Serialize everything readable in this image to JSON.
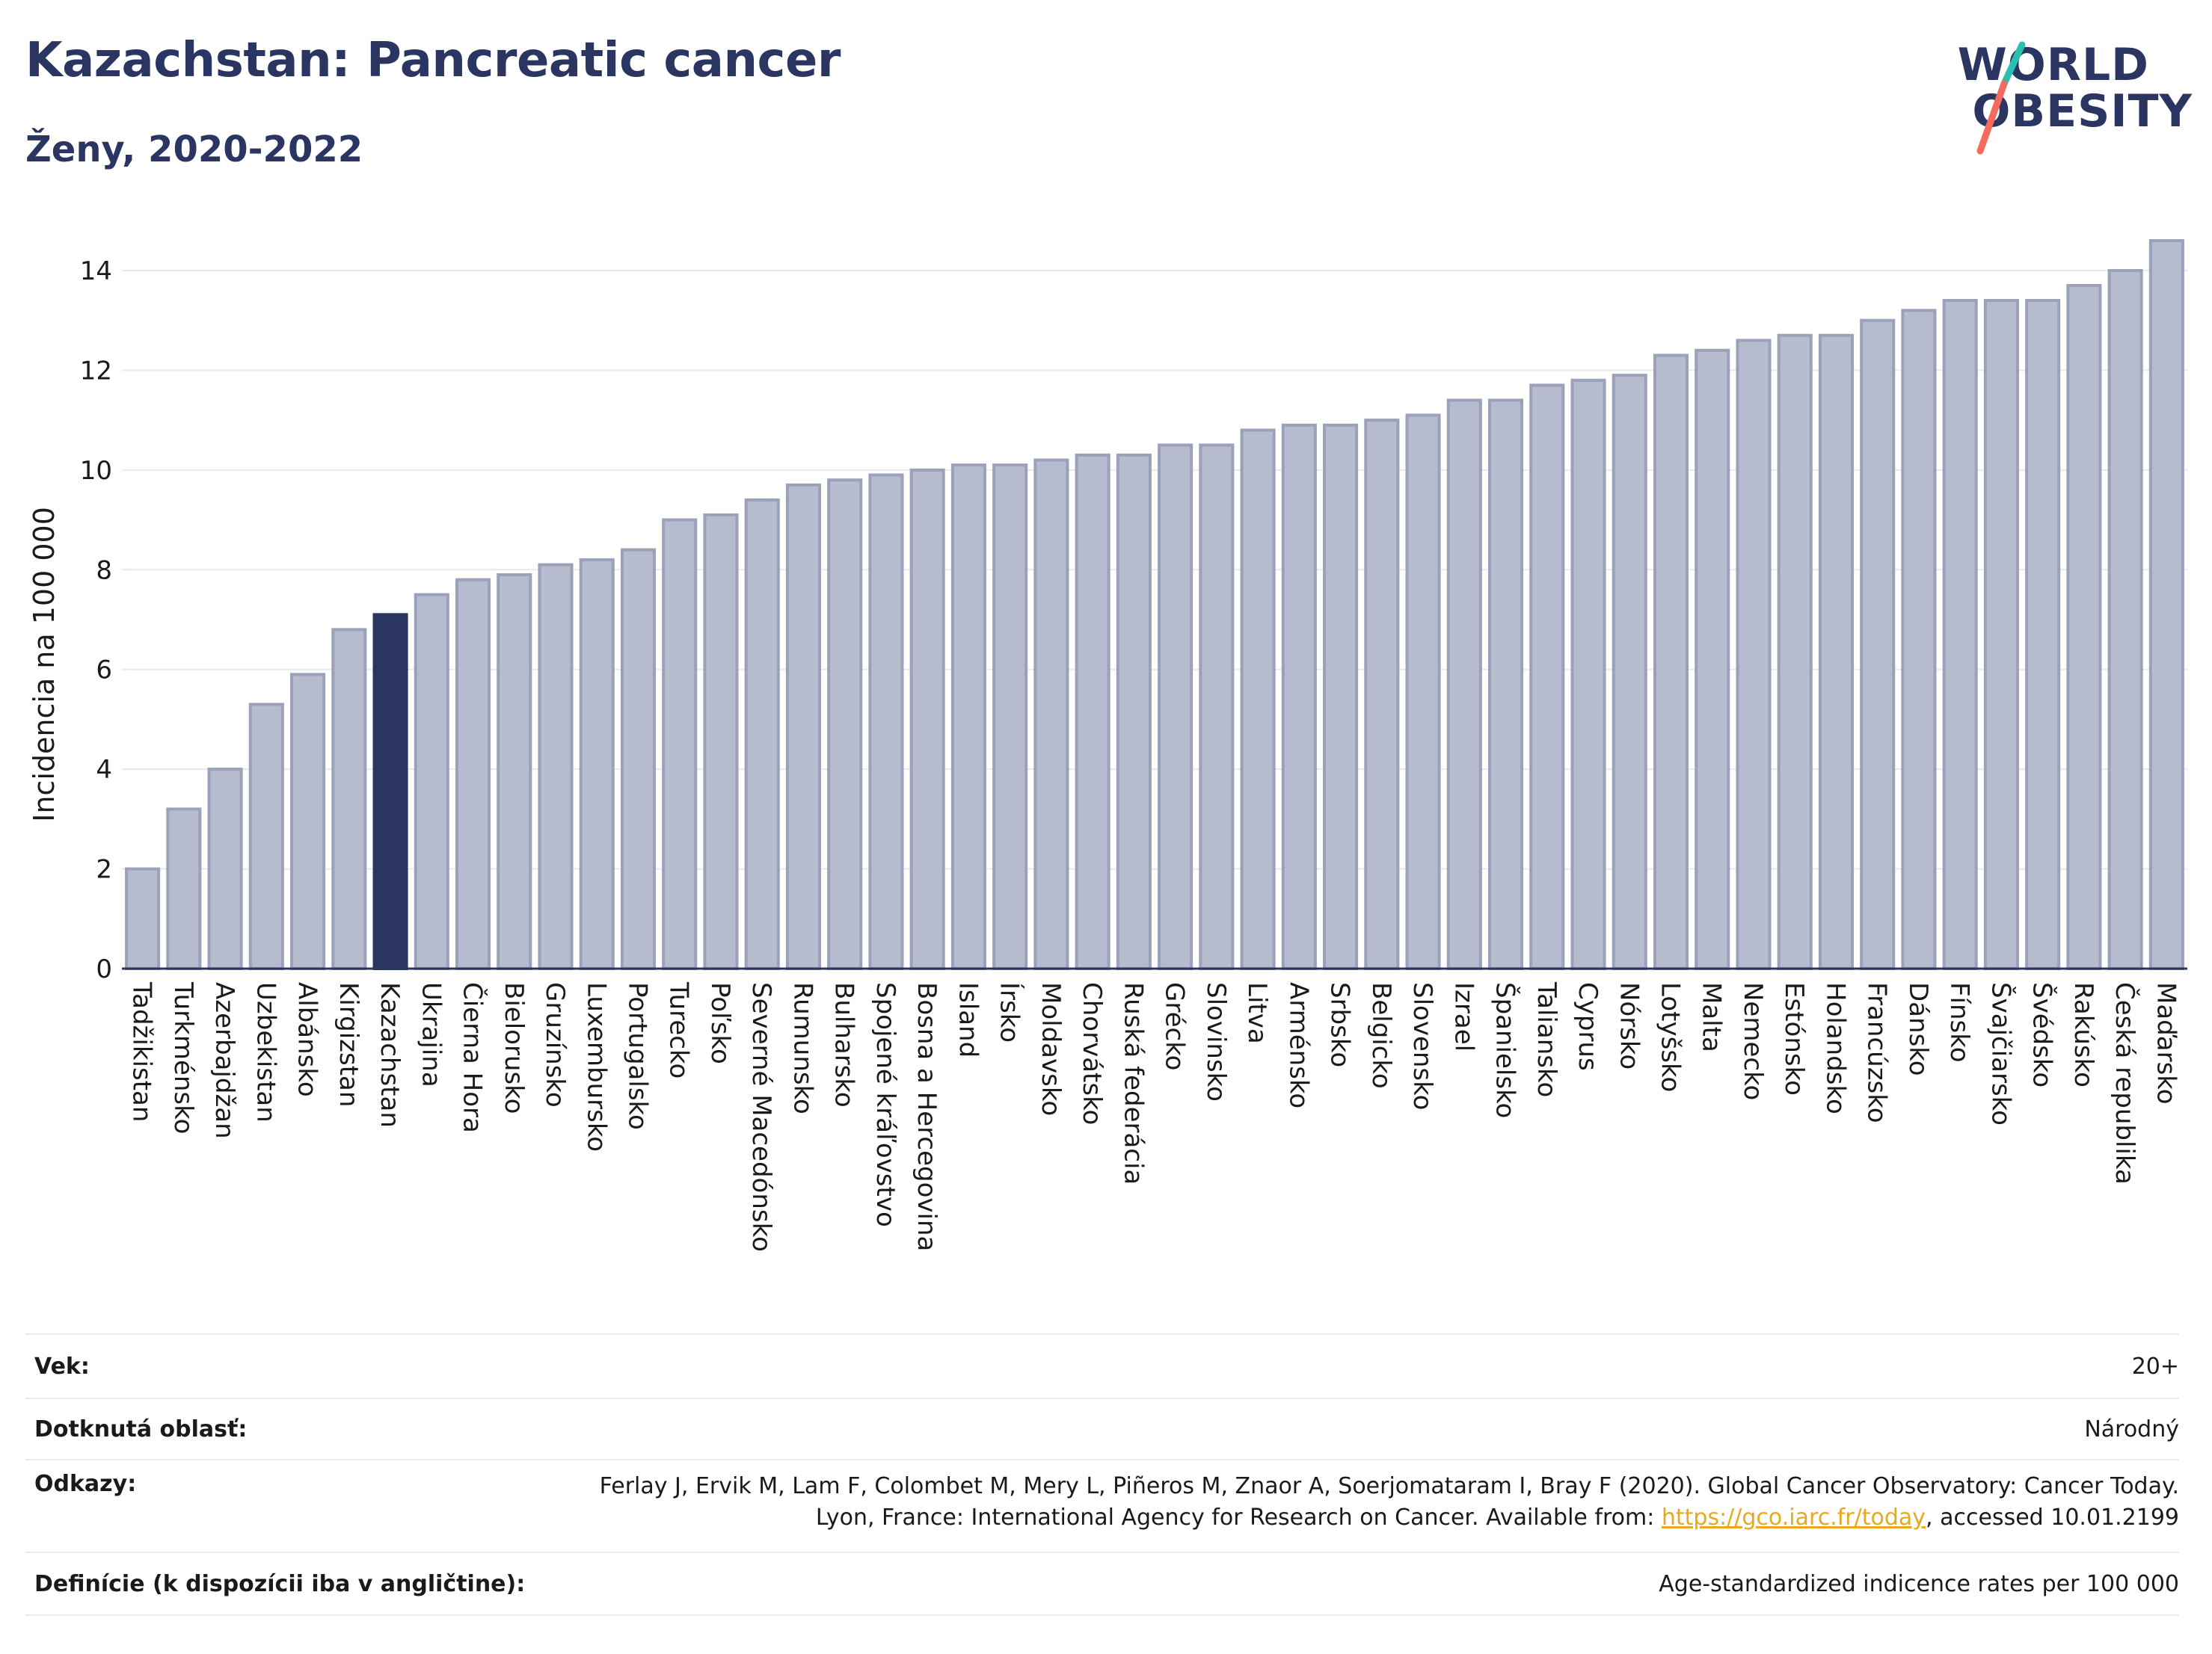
{
  "header": {
    "title": "Kazachstan: Pancreatic cancer",
    "subtitle": "Ženy, 2020-2022"
  },
  "logo": {
    "line1": "WORLD",
    "line2": "OBESITY"
  },
  "colors": {
    "bar": "#b6bcce",
    "bar_stroke": "#9aa1b8",
    "highlight": "#2b3561",
    "title": "#2b3561",
    "link": "#e8a820",
    "logo_slash_teal": "#2bbfb0",
    "logo_slash_coral": "#f26b5e"
  },
  "chart_data": {
    "type": "bar",
    "ylabel": "Incidencia na 100 000",
    "xlabel": "",
    "ylim": [
      0,
      15
    ],
    "yticks": [
      0,
      2,
      4,
      6,
      8,
      10,
      12,
      14
    ],
    "grid": true,
    "highlight": "Kazachstan",
    "categories": [
      "Tadžikistan",
      "Turkménsko",
      "Azerbajdžan",
      "Uzbekistan",
      "Albánsko",
      "Kirgizstan",
      "Kazachstan",
      "Ukrajina",
      "Čierna Hora",
      "Bielorusko",
      "Gruzínsko",
      "Luxembursko",
      "Portugalsko",
      "Turecko",
      "Poľsko",
      "Severné Macedónsko",
      "Rumunsko",
      "Bulharsko",
      "Spojené kráľovstvo",
      "Bosna a Hercegovina",
      "Island",
      "Írsko",
      "Moldavsko",
      "Chorvátsko",
      "Ruská federácia",
      "Grécko",
      "Slovinsko",
      "Litva",
      "Arménsko",
      "Srbsko",
      "Belgicko",
      "Slovensko",
      "Izrael",
      "Španielsko",
      "Taliansko",
      "Cyprus",
      "Nórsko",
      "Lotyšsko",
      "Malta",
      "Nemecko",
      "Estónsko",
      "Holandsko",
      "Francúzsko",
      "Dánsko",
      "Fínsko",
      "Švajčiarsko",
      "Švédsko",
      "Rakúsko",
      "Česká republika",
      "Maďarsko"
    ],
    "values": [
      2.0,
      3.2,
      4.0,
      5.3,
      5.9,
      6.8,
      7.1,
      7.5,
      7.8,
      7.9,
      8.1,
      8.2,
      8.4,
      9.0,
      9.1,
      9.4,
      9.7,
      9.8,
      9.9,
      10.0,
      10.1,
      10.1,
      10.2,
      10.3,
      10.3,
      10.5,
      10.5,
      10.8,
      10.9,
      10.9,
      11.0,
      11.1,
      11.4,
      11.4,
      11.7,
      11.8,
      11.9,
      12.3,
      12.4,
      12.6,
      12.7,
      12.7,
      13.0,
      13.2,
      13.4,
      13.4,
      13.4,
      13.7,
      14.0,
      14.6
    ]
  },
  "footer": {
    "age_label": "Vek:",
    "age_value": "20+",
    "area_label": "Dotknutá oblasť:",
    "area_value": "Národný",
    "refs_label": "Odkazy:",
    "refs_text_1": "Ferlay J, Ervik M, Lam F, Colombet M, Mery L, Piñeros M, Znaor A, Soerjomataram I, Bray F (2020). Global Cancer Observatory: Cancer Today. Lyon, France: International Agency for Research on Cancer. Available from: ",
    "refs_link": "https://gco.iarc.fr/today",
    "refs_text_2": ", accessed 10.01.2199",
    "def_label": "Definície (k dispozícii iba v angličtine):",
    "def_value": "Age-standardized indicence rates per 100 000"
  }
}
